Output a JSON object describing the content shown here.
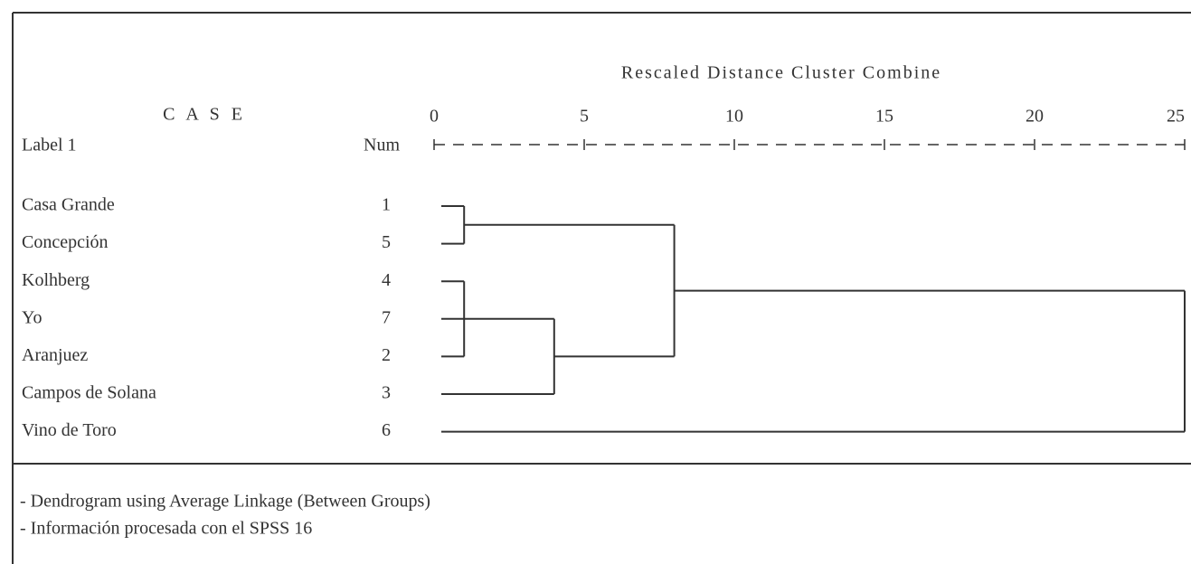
{
  "chart_data": {
    "type": "dendrogram",
    "title": "Rescaled Distance Cluster Combine",
    "case_header": "C A S E",
    "label_header": "Label 1",
    "num_header": "Num",
    "labels": [
      "Casa Grande",
      "Concepción",
      "Kolhberg",
      "Yo",
      "Aranjuez",
      "Campos de Solana",
      "Vino de Toro"
    ],
    "nums": [
      1,
      5,
      4,
      7,
      2,
      3,
      6
    ],
    "merges": [
      {
        "members": [
          0,
          1
        ],
        "distance": 1
      },
      {
        "members": [
          2,
          3,
          4
        ],
        "distance": 1
      },
      {
        "members": [
          8,
          5
        ],
        "distance": 4
      },
      {
        "members": [
          7,
          9
        ],
        "distance": 8
      },
      {
        "members": [
          10,
          6
        ],
        "distance": 25
      }
    ],
    "xlim": [
      0,
      25
    ],
    "xticks": [
      0,
      5,
      10,
      15,
      20,
      25
    ],
    "notes": [
      "- Dendrogram using Average Linkage (Between Groups)",
      "- Información procesada con el SPSS 16"
    ]
  }
}
